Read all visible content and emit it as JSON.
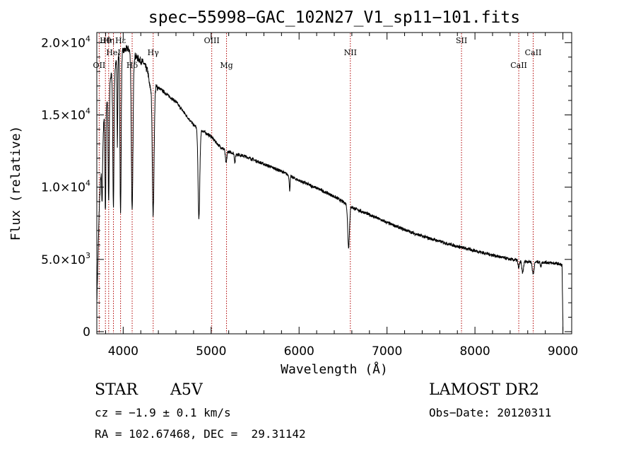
{
  "chart_data": {
    "type": "line",
    "title": "spec−55998−GAC_102N27_V1_sp11−101.fits",
    "xlabel": "Wavelength (Å)",
    "ylabel": "Flux (relative)",
    "xlim": [
      3700,
      9100
    ],
    "ylim": [
      -150,
      20700
    ],
    "x_ticks": [
      {
        "value": 4000,
        "label": "4000"
      },
      {
        "value": 5000,
        "label": "5000"
      },
      {
        "value": 6000,
        "label": "6000"
      },
      {
        "value": 7000,
        "label": "7000"
      },
      {
        "value": 8000,
        "label": "8000"
      },
      {
        "value": 9000,
        "label": "9000"
      }
    ],
    "y_ticks": [
      {
        "value": 0,
        "mantissa": "0",
        "exp": ""
      },
      {
        "value": 5000,
        "mantissa": "5.0×10",
        "exp": "3"
      },
      {
        "value": 10000,
        "mantissa": "1.0×10",
        "exp": "4"
      },
      {
        "value": 15000,
        "mantissa": "1.5×10",
        "exp": "4"
      },
      {
        "value": 20000,
        "mantissa": "2.0×10",
        "exp": "4"
      }
    ],
    "line_markers": [
      {
        "wavelength": 3727,
        "label": "OII",
        "row": 3
      },
      {
        "wavelength": 3798,
        "label": "Hθ",
        "row": 1
      },
      {
        "wavelength": 3835,
        "label": "Hη",
        "row": 1
      },
      {
        "wavelength": 3889,
        "label": "HeI",
        "row": 2
      },
      {
        "wavelength": 3970,
        "label": "Hε",
        "row": 1
      },
      {
        "wavelength": 4102,
        "label": "Hδ",
        "row": 3
      },
      {
        "wavelength": 4341,
        "label": "Hγ",
        "row": 2
      },
      {
        "wavelength": 5007,
        "label": "OIII",
        "row": 1
      },
      {
        "wavelength": 5175,
        "label": "Mg",
        "row": 3
      },
      {
        "wavelength": 6583,
        "label": "NII",
        "row": 2
      },
      {
        "wavelength": 7847,
        "label": "SII",
        "row": 1
      },
      {
        "wavelength": 8498,
        "label": "CaII",
        "row": 3
      },
      {
        "wavelength": 8662,
        "label": "CaII",
        "row": 2
      }
    ],
    "continuum": [
      [
        3700,
        2000
      ],
      [
        3730,
        9000
      ],
      [
        3780,
        14500
      ],
      [
        3850,
        17500
      ],
      [
        3950,
        19200
      ],
      [
        4050,
        19600
      ],
      [
        4150,
        19000
      ],
      [
        4230,
        18600
      ],
      [
        4280,
        18000
      ],
      [
        4300,
        17000
      ],
      [
        4400,
        16900
      ],
      [
        4500,
        16400
      ],
      [
        4600,
        15900
      ],
      [
        4700,
        15100
      ],
      [
        4800,
        14300
      ],
      [
        4900,
        13900
      ],
      [
        5000,
        13500
      ],
      [
        5100,
        12800
      ],
      [
        5200,
        12450
      ],
      [
        5400,
        12100
      ],
      [
        5600,
        11600
      ],
      [
        5800,
        11100
      ],
      [
        5950,
        10600
      ],
      [
        6100,
        10200
      ],
      [
        6250,
        9800
      ],
      [
        6400,
        9350
      ],
      [
        6550,
        8800
      ],
      [
        6620,
        8550
      ],
      [
        6800,
        8100
      ],
      [
        7000,
        7550
      ],
      [
        7200,
        7050
      ],
      [
        7400,
        6600
      ],
      [
        7600,
        6250
      ],
      [
        7800,
        5900
      ],
      [
        8000,
        5600
      ],
      [
        8200,
        5300
      ],
      [
        8400,
        5000
      ],
      [
        8600,
        4850
      ],
      [
        8800,
        4800
      ],
      [
        8950,
        4700
      ],
      [
        8990,
        4600
      ],
      [
        9000,
        600
      ]
    ],
    "absorption": [
      {
        "center": 3760,
        "depth": 3500,
        "width": 5
      },
      {
        "center": 3798,
        "depth": 7000,
        "width": 5
      },
      {
        "center": 3835,
        "depth": 8000,
        "width": 6
      },
      {
        "center": 3889,
        "depth": 9500,
        "width": 7
      },
      {
        "center": 3934,
        "depth": 6000,
        "width": 4
      },
      {
        "center": 3970,
        "depth": 11200,
        "width": 7
      },
      {
        "center": 4102,
        "depth": 11000,
        "width": 9
      },
      {
        "center": 4341,
        "depth": 8800,
        "width": 10
      },
      {
        "center": 4861,
        "depth": 6200,
        "width": 10
      },
      {
        "center": 5170,
        "depth": 900,
        "width": 8
      },
      {
        "center": 5270,
        "depth": 600,
        "width": 6
      },
      {
        "center": 5893,
        "depth": 1000,
        "width": 5
      },
      {
        "center": 6563,
        "depth": 2900,
        "width": 10
      },
      {
        "center": 8498,
        "depth": 500,
        "width": 8
      },
      {
        "center": 8542,
        "depth": 800,
        "width": 10
      },
      {
        "center": 8662,
        "depth": 850,
        "width": 10
      },
      {
        "center": 8750,
        "depth": 300,
        "width": 6
      }
    ]
  },
  "info": {
    "object_class": "STAR",
    "subclass": "A5V",
    "survey": "LAMOST DR2",
    "redshift": "cz = −1.9 ± 0.1 km/s",
    "obs_date": "Obs−Date: 20120311",
    "coords": "RA = 102.67468, DEC =  29.31142"
  },
  "colors": {
    "axis": "#000000",
    "spectrum": "#000000",
    "marker": "#b00000",
    "background": "#ffffff"
  }
}
